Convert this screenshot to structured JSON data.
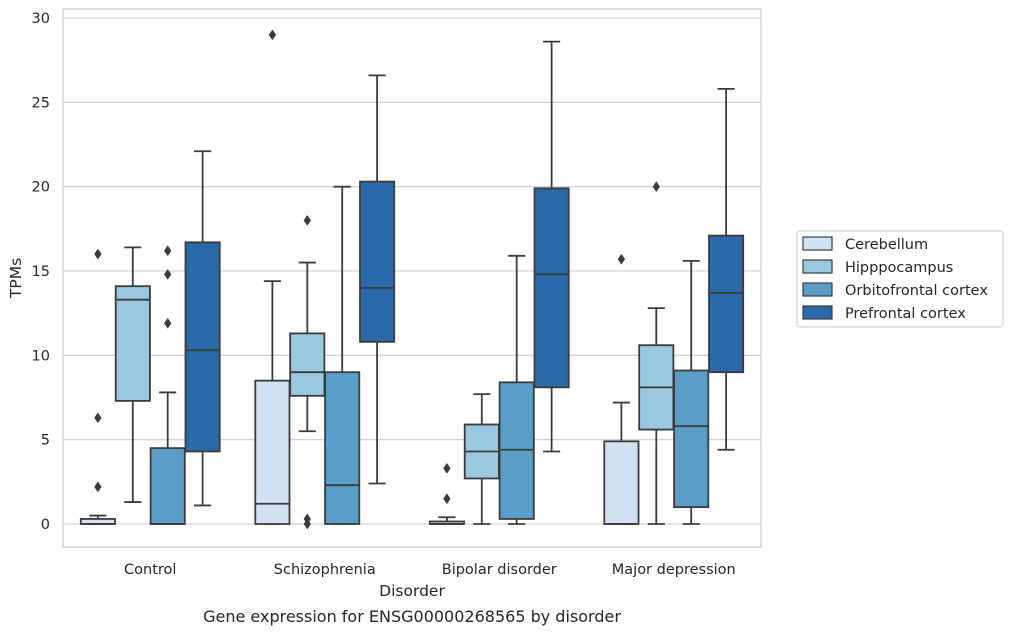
{
  "chart_data": {
    "type": "box",
    "xlabel": "Disorder",
    "ylabel": "TPMs",
    "caption": "Gene expression for ENSG00000268565 by disorder",
    "ylim": [
      -1.4,
      30.5
    ],
    "yticks": [
      0,
      5,
      10,
      15,
      20,
      25,
      30
    ],
    "grid": true,
    "legend_position": "right",
    "categories": [
      "Control",
      "Schizophrenia",
      "Bipolar disorder",
      "Major depression"
    ],
    "series": [
      {
        "name": "Cerebellum",
        "color": "#d2e2f2",
        "boxes": [
          {
            "q1": 0.0,
            "median": 0.0,
            "q3": 0.3,
            "whisker_low": 0.0,
            "whisker_high": 0.5,
            "outliers": [
              2.2,
              6.3,
              16.0
            ]
          },
          {
            "q1": 0.0,
            "median": 1.2,
            "q3": 8.5,
            "whisker_low": 0.0,
            "whisker_high": 14.4,
            "outliers": [
              29.0
            ]
          },
          {
            "q1": 0.0,
            "median": 0.0,
            "q3": 0.15,
            "whisker_low": 0.0,
            "whisker_high": 0.4,
            "outliers": [
              1.5,
              3.3
            ]
          },
          {
            "q1": 0.0,
            "median": 0.0,
            "q3": 4.9,
            "whisker_low": 0.0,
            "whisker_high": 7.2,
            "outliers": [
              15.7
            ]
          }
        ]
      },
      {
        "name": "Hipppocampus",
        "color": "#9ac8e0",
        "boxes": [
          {
            "q1": 7.3,
            "median": 13.3,
            "q3": 14.1,
            "whisker_low": 1.3,
            "whisker_high": 16.4,
            "outliers": []
          },
          {
            "q1": 7.6,
            "median": 9.0,
            "q3": 11.3,
            "whisker_low": 5.5,
            "whisker_high": 15.5,
            "outliers": [
              0.0,
              0.3,
              18.0
            ]
          },
          {
            "q1": 2.7,
            "median": 4.3,
            "q3": 5.9,
            "whisker_low": 0.0,
            "whisker_high": 7.7,
            "outliers": []
          },
          {
            "q1": 5.6,
            "median": 8.1,
            "q3": 10.6,
            "whisker_low": 0.0,
            "whisker_high": 12.8,
            "outliers": [
              20.0
            ]
          }
        ]
      },
      {
        "name": "Orbitofrontal cortex",
        "color": "#5a9ec8",
        "boxes": [
          {
            "q1": 0.0,
            "median": 0.0,
            "q3": 4.5,
            "whisker_low": 0.0,
            "whisker_high": 7.8,
            "outliers": [
              11.9,
              14.8,
              16.2
            ]
          },
          {
            "q1": 0.0,
            "median": 2.3,
            "q3": 9.0,
            "whisker_low": 0.0,
            "whisker_high": 20.0,
            "outliers": []
          },
          {
            "q1": 0.3,
            "median": 4.4,
            "q3": 8.4,
            "whisker_low": 0.0,
            "whisker_high": 15.9,
            "outliers": []
          },
          {
            "q1": 1.0,
            "median": 5.8,
            "q3": 9.1,
            "whisker_low": 0.0,
            "whisker_high": 15.6,
            "outliers": []
          }
        ]
      },
      {
        "name": "Prefrontal cortex",
        "color": "#2b6aa8",
        "boxes": [
          {
            "q1": 4.3,
            "median": 10.3,
            "q3": 16.7,
            "whisker_low": 1.1,
            "whisker_high": 22.1,
            "outliers": []
          },
          {
            "q1": 10.8,
            "median": 14.0,
            "q3": 20.3,
            "whisker_low": 2.4,
            "whisker_high": 26.6,
            "outliers": []
          },
          {
            "q1": 8.1,
            "median": 14.8,
            "q3": 19.9,
            "whisker_low": 4.3,
            "whisker_high": 28.6,
            "outliers": []
          },
          {
            "q1": 9.0,
            "median": 13.7,
            "q3": 17.1,
            "whisker_low": 4.4,
            "whisker_high": 25.8,
            "outliers": []
          }
        ]
      }
    ]
  }
}
